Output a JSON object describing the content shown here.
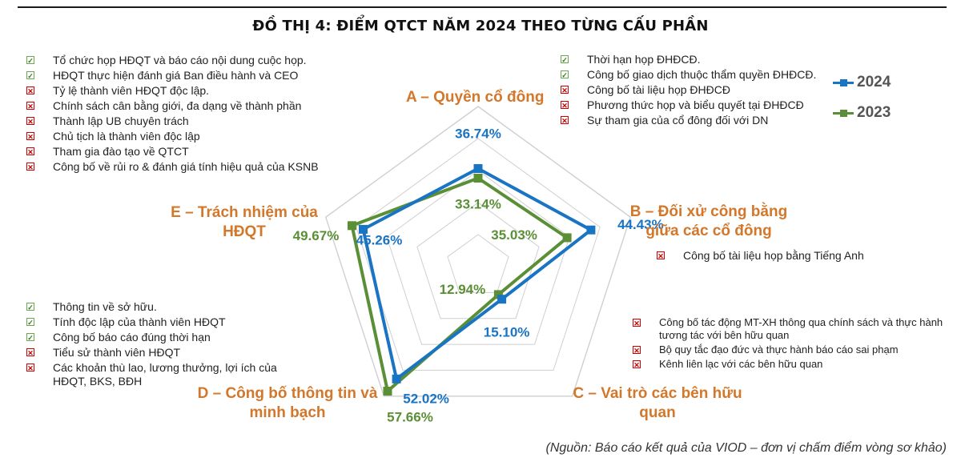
{
  "title": "ĐỒ THỊ 4: ĐIỂM QTCT NĂM 2024 THEO TỪNG CẤU PHẦN",
  "source": "(Nguồn: Báo cáo kết quả của VIOD – đơn vị chấm điểm vòng sơ khảo)",
  "colors": {
    "s2024": "#1a74c4",
    "s2023": "#5a8f36",
    "axis_label": "#d3772a",
    "grid": "#cfcfcf",
    "ok": "#38761d",
    "no": "#cc0000"
  },
  "axis_names": {
    "a": "A – Quyền cổ đông",
    "b": [
      "B – Đối xử công bằng",
      "giữa các cổ đông"
    ],
    "c": [
      "C – Vai trò các bên hữu",
      "quan"
    ],
    "d": [
      "D – Công bố thông tin và",
      "minh bạch"
    ],
    "e": [
      "E – Trách nhiệm của",
      "HĐQT"
    ]
  },
  "checklists": {
    "a": [
      {
        "status": "ok",
        "text": "Thời hạn họp ĐHĐCĐ."
      },
      {
        "status": "ok",
        "text": "Công bố giao dịch thuộc thẩm quyền ĐHĐCĐ."
      },
      {
        "status": "no",
        "text": "Công bố tài liệu họp ĐHĐCĐ"
      },
      {
        "status": "no",
        "text": "Phương thức họp và biểu quyết tại ĐHĐCĐ"
      },
      {
        "status": "no",
        "text": "Sự tham gia của cổ đông đối với DN"
      }
    ],
    "b": [
      {
        "status": "no",
        "text": "Công bố tài liệu họp bằng Tiếng Anh"
      }
    ],
    "c": [
      {
        "status": "no",
        "text": "Công bố tác động MT-XH thông qua chính sách và thực hành tương tác với bên hữu quan"
      },
      {
        "status": "no",
        "text": "Bộ quy tắc đạo đức và thực hành báo cáo sai phạm"
      },
      {
        "status": "no",
        "text": "Kênh liên lạc với các bên hữu quan"
      }
    ],
    "d": [
      {
        "status": "ok",
        "text": "Thông tin về sở hữu."
      },
      {
        "status": "ok",
        "text": "Tính độc lập của thành viên HĐQT"
      },
      {
        "status": "ok",
        "text": "Công bố báo cáo đúng thời hạn"
      },
      {
        "status": "no",
        "text": "Tiểu sử thành viên HĐQT"
      },
      {
        "status": "no",
        "text": "Các khoản thù lao, lương thưởng, lợi ích của HĐQT, BKS, BĐH"
      }
    ],
    "e": [
      {
        "status": "ok",
        "text": "Tổ chức họp HĐQT và báo cáo nội dung cuộc họp."
      },
      {
        "status": "ok",
        "text": "HĐQT thực hiện đánh giá Ban điều hành và CEO"
      },
      {
        "status": "no",
        "text": "Tỷ lệ thành viên HĐQT độc lập."
      },
      {
        "status": "no",
        "text": "Chính sách cân bằng giới, đa dạng về thành phần"
      },
      {
        "status": "no",
        "text": "Thành lập UB chuyên trách"
      },
      {
        "status": "no",
        "text": "Chủ tịch là thành viên độc lập"
      },
      {
        "status": "no",
        "text": "Tham gia đào tạo về QTCT"
      },
      {
        "status": "no",
        "text": "Công bố về rủi ro & đánh giá tính hiệu quả của KSNB"
      }
    ]
  },
  "chart_data": {
    "type": "radar",
    "categories": [
      "A",
      "B",
      "C",
      "D",
      "E"
    ],
    "rmax": 60,
    "grid_rings": 5,
    "series": [
      {
        "name": "2024",
        "values": [
          36.74,
          44.43,
          15.1,
          52.02,
          45.26
        ],
        "labels": [
          "36.74%",
          "44.43%",
          "15.10%",
          "52.02%",
          "45.26%"
        ]
      },
      {
        "name": "2023",
        "values": [
          33.14,
          35.03,
          12.94,
          57.66,
          49.67
        ],
        "labels": [
          "33.14%",
          "35.03%",
          "12.94%",
          "57.66%",
          "49.67%"
        ]
      }
    ]
  }
}
